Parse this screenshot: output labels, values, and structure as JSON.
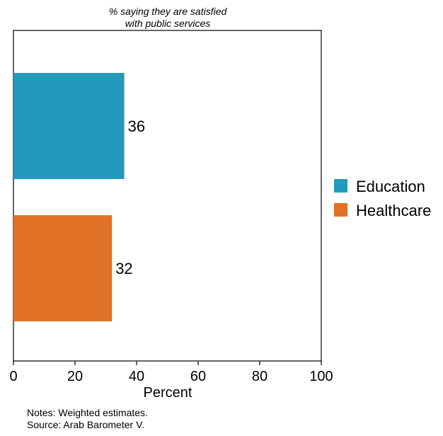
{
  "chart_data": {
    "type": "bar",
    "orientation": "horizontal",
    "title": [
      "% saying they are satisfied",
      "with public services"
    ],
    "categories": [
      "Education",
      "Healthcare"
    ],
    "values": [
      36,
      32
    ],
    "data_labels": [
      "36",
      "32"
    ],
    "colors": [
      "#2399bb",
      "#e07125"
    ],
    "xlabel": "Percent",
    "ylabel": "",
    "xlim": [
      0,
      100
    ],
    "xticks": [
      0,
      20,
      40,
      60,
      80,
      100
    ],
    "xtick_labels": [
      "0",
      "20",
      "40",
      "60",
      "80",
      "100"
    ],
    "grid": false,
    "legend": {
      "position": "right",
      "entries": [
        "Education",
        "Healthcare"
      ]
    }
  },
  "notes": [
    "Notes: Weighted estimates.",
    "Source: Arab Barometer V."
  ]
}
